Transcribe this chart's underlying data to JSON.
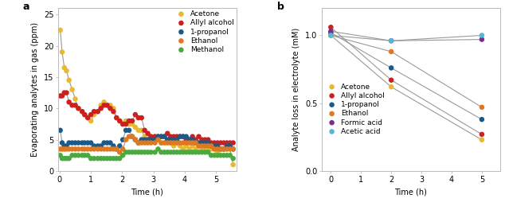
{
  "panel_a": {
    "xlabel": "Time (h)",
    "ylabel": "Evaporating analytes in gas (ppm)",
    "xlim": [
      -0.05,
      5.65
    ],
    "ylim": [
      0,
      26
    ],
    "yticks": [
      0,
      5,
      10,
      15,
      20,
      25
    ],
    "xticks": [
      0,
      1,
      2,
      3,
      4,
      5
    ],
    "series": {
      "Acetone": {
        "color": "#E8B830",
        "x": [
          0.02,
          0.08,
          0.15,
          0.22,
          0.3,
          0.4,
          0.5,
          0.6,
          0.72,
          0.8,
          0.9,
          1.0,
          1.1,
          1.22,
          1.32,
          1.42,
          1.52,
          1.62,
          1.72,
          1.82,
          1.92,
          2.02,
          2.12,
          2.22,
          2.32,
          2.42,
          2.52,
          2.62,
          2.72,
          2.82,
          2.92,
          3.05,
          3.15,
          3.25,
          3.35,
          3.45,
          3.55,
          3.65,
          3.75,
          3.85,
          3.95,
          4.05,
          4.15,
          4.25,
          4.35,
          4.45,
          4.55,
          4.65,
          4.75,
          4.85,
          4.95,
          5.05,
          5.15,
          5.25,
          5.35,
          5.45,
          5.55
        ],
        "y": [
          22.5,
          19.0,
          16.5,
          16.0,
          14.5,
          13.0,
          11.5,
          10.0,
          9.5,
          9.0,
          8.5,
          8.0,
          9.0,
          9.5,
          10.5,
          11.0,
          10.5,
          10.5,
          10.0,
          8.5,
          8.0,
          7.5,
          8.0,
          7.5,
          7.5,
          7.0,
          6.5,
          6.5,
          5.5,
          5.0,
          5.5,
          5.5,
          5.0,
          4.5,
          4.5,
          4.5,
          4.5,
          4.0,
          4.5,
          4.0,
          3.5,
          4.0,
          3.5,
          4.0,
          3.5,
          4.0,
          3.5,
          3.5,
          3.5,
          3.5,
          3.5,
          3.0,
          3.5,
          3.5,
          3.5,
          3.5,
          1.0
        ]
      },
      "Allyl alcohol": {
        "color": "#CC2020",
        "x": [
          0.02,
          0.08,
          0.15,
          0.22,
          0.3,
          0.4,
          0.5,
          0.6,
          0.72,
          0.8,
          0.9,
          1.0,
          1.1,
          1.22,
          1.32,
          1.42,
          1.52,
          1.62,
          1.72,
          1.82,
          1.92,
          2.02,
          2.12,
          2.22,
          2.32,
          2.42,
          2.52,
          2.62,
          2.72,
          2.82,
          2.92,
          3.05,
          3.15,
          3.25,
          3.35,
          3.45,
          3.55,
          3.65,
          3.75,
          3.85,
          3.95,
          4.05,
          4.15,
          4.25,
          4.35,
          4.45,
          4.55,
          4.65,
          4.75,
          4.85,
          4.95,
          5.05,
          5.15,
          5.25,
          5.35,
          5.45,
          5.55
        ],
        "y": [
          12.0,
          12.0,
          12.5,
          12.5,
          11.0,
          10.5,
          10.5,
          10.0,
          9.5,
          9.0,
          8.5,
          9.0,
          9.5,
          9.5,
          10.0,
          10.5,
          10.5,
          10.0,
          9.5,
          8.5,
          8.0,
          7.5,
          7.5,
          8.0,
          8.0,
          9.0,
          8.5,
          8.5,
          6.5,
          6.0,
          5.5,
          5.5,
          5.5,
          5.5,
          5.5,
          6.0,
          5.5,
          5.5,
          5.5,
          5.5,
          5.5,
          5.0,
          5.0,
          5.5,
          5.0,
          5.5,
          5.0,
          5.0,
          5.0,
          4.5,
          4.5,
          4.5,
          4.5,
          4.5,
          4.5,
          4.5,
          4.5
        ]
      },
      "1-propanol": {
        "color": "#1A5A8A",
        "x": [
          0.02,
          0.08,
          0.15,
          0.22,
          0.3,
          0.4,
          0.5,
          0.6,
          0.72,
          0.8,
          0.9,
          1.0,
          1.1,
          1.22,
          1.32,
          1.42,
          1.52,
          1.62,
          1.72,
          1.82,
          1.92,
          2.02,
          2.12,
          2.22,
          2.32,
          2.42,
          2.52,
          2.62,
          2.72,
          2.82,
          2.92,
          3.05,
          3.15,
          3.25,
          3.35,
          3.45,
          3.55,
          3.65,
          3.75,
          3.85,
          3.95,
          4.05,
          4.15,
          4.25,
          4.35,
          4.45,
          4.55,
          4.65,
          4.75,
          4.85,
          4.95,
          5.05,
          5.15,
          5.25,
          5.35,
          5.45,
          5.55
        ],
        "y": [
          6.5,
          4.5,
          4.0,
          4.0,
          4.5,
          4.5,
          4.5,
          4.5,
          4.5,
          4.5,
          4.5,
          4.5,
          4.0,
          4.0,
          4.0,
          4.5,
          4.5,
          4.5,
          4.0,
          3.5,
          4.0,
          5.0,
          6.5,
          6.5,
          5.5,
          5.0,
          4.5,
          5.0,
          5.0,
          5.0,
          5.0,
          5.0,
          5.5,
          5.5,
          5.5,
          5.0,
          5.0,
          5.0,
          5.0,
          5.5,
          5.5,
          5.5,
          5.0,
          5.0,
          4.5,
          4.5,
          4.5,
          4.5,
          4.5,
          4.0,
          4.0,
          4.0,
          3.5,
          3.5,
          4.0,
          4.0,
          3.5
        ]
      },
      "Ethanol": {
        "color": "#E07820",
        "x": [
          0.02,
          0.08,
          0.15,
          0.22,
          0.3,
          0.4,
          0.5,
          0.6,
          0.72,
          0.8,
          0.9,
          1.0,
          1.1,
          1.22,
          1.32,
          1.42,
          1.52,
          1.62,
          1.72,
          1.82,
          1.92,
          2.02,
          2.12,
          2.22,
          2.32,
          2.42,
          2.52,
          2.62,
          2.72,
          2.82,
          2.92,
          3.05,
          3.15,
          3.25,
          3.35,
          3.45,
          3.55,
          3.65,
          3.75,
          3.85,
          3.95,
          4.05,
          4.15,
          4.25,
          4.35,
          4.45,
          4.55,
          4.65,
          4.75,
          4.85,
          4.95,
          5.05,
          5.15,
          5.25,
          5.35,
          5.45,
          5.55
        ],
        "y": [
          3.5,
          3.5,
          3.5,
          3.5,
          3.5,
          3.5,
          3.5,
          3.5,
          3.5,
          3.5,
          3.5,
          3.5,
          3.5,
          3.5,
          3.5,
          3.5,
          3.5,
          3.5,
          3.5,
          3.5,
          3.0,
          3.5,
          5.0,
          5.5,
          5.5,
          5.0,
          4.5,
          4.5,
          4.5,
          4.5,
          4.5,
          4.5,
          5.0,
          4.5,
          4.5,
          4.5,
          4.5,
          4.5,
          4.5,
          4.5,
          4.5,
          4.5,
          4.5,
          4.5,
          4.5,
          4.0,
          4.0,
          4.0,
          4.0,
          4.0,
          3.5,
          3.5,
          3.5,
          3.5,
          3.5,
          3.5,
          3.5
        ]
      },
      "Methanol": {
        "color": "#4AAA40",
        "x": [
          0.02,
          0.08,
          0.15,
          0.22,
          0.3,
          0.4,
          0.5,
          0.6,
          0.72,
          0.8,
          0.9,
          1.0,
          1.1,
          1.22,
          1.32,
          1.42,
          1.52,
          1.62,
          1.72,
          1.82,
          1.92,
          2.02,
          2.12,
          2.22,
          2.32,
          2.42,
          2.52,
          2.62,
          2.72,
          2.82,
          2.92,
          3.05,
          3.15,
          3.25,
          3.35,
          3.45,
          3.55,
          3.65,
          3.75,
          3.85,
          3.95,
          4.05,
          4.15,
          4.25,
          4.35,
          4.45,
          4.55,
          4.65,
          4.75,
          4.85,
          4.95,
          5.05,
          5.15,
          5.25,
          5.35,
          5.45,
          5.55
        ],
        "y": [
          2.5,
          2.0,
          2.0,
          2.0,
          2.0,
          2.5,
          2.5,
          2.5,
          2.5,
          2.5,
          2.5,
          2.0,
          2.0,
          2.0,
          2.0,
          2.0,
          2.0,
          2.0,
          2.0,
          2.0,
          2.0,
          2.5,
          3.0,
          3.0,
          3.0,
          3.0,
          3.0,
          3.0,
          3.0,
          3.0,
          3.0,
          3.0,
          3.5,
          3.0,
          3.0,
          3.0,
          3.0,
          3.0,
          3.0,
          3.0,
          3.0,
          3.0,
          3.0,
          3.0,
          3.0,
          3.0,
          3.0,
          3.0,
          3.0,
          2.5,
          2.5,
          2.5,
          2.5,
          2.5,
          2.5,
          2.5,
          2.0
        ]
      }
    }
  },
  "panel_b": {
    "xlabel": "Time (h)",
    "ylabel": "Analyte loss in electrolyte (mM)",
    "xlim": [
      -0.3,
      5.6
    ],
    "ylim": [
      0,
      1.2
    ],
    "yticks": [
      0,
      0.5,
      1.0
    ],
    "xticks": [
      0,
      1,
      2,
      3,
      4,
      5
    ],
    "series": {
      "Acetone": {
        "color": "#E8B830",
        "x": [
          0,
          2,
          5
        ],
        "y": [
          1.0,
          0.62,
          0.23
        ]
      },
      "Allyl alcohol": {
        "color": "#CC2020",
        "x": [
          0,
          2,
          5
        ],
        "y": [
          1.06,
          0.67,
          0.27
        ]
      },
      "1-propanol": {
        "color": "#1A5A8A",
        "x": [
          0,
          2,
          5
        ],
        "y": [
          1.02,
          0.76,
          0.38
        ]
      },
      "Ethanol": {
        "color": "#E07820",
        "x": [
          0,
          2,
          5
        ],
        "y": [
          1.0,
          0.88,
          0.47
        ]
      },
      "Formic acid": {
        "color": "#7B2D8B",
        "x": [
          0,
          2,
          5
        ],
        "y": [
          1.03,
          0.96,
          0.97
        ]
      },
      "Acetic acid": {
        "color": "#50B8D8",
        "x": [
          0,
          2,
          5
        ],
        "y": [
          1.0,
          0.96,
          1.0
        ]
      }
    }
  },
  "line_color": "#999999",
  "marker_size": 22,
  "line_width": 0.8,
  "bg_color": "#ffffff",
  "spine_color": "#bbbbbb",
  "label_fontsize": 7,
  "tick_fontsize": 7,
  "legend_fontsize": 6.5
}
